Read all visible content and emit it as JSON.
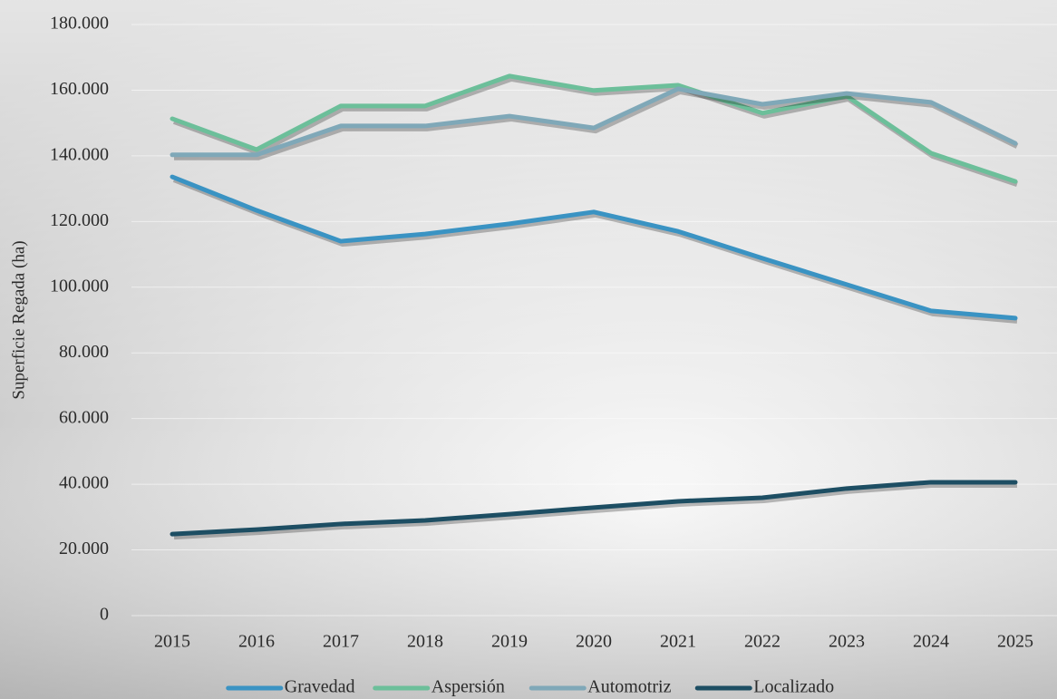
{
  "chart_data": {
    "type": "line",
    "y_label": "Superficie Regada (ha)",
    "categories": [
      "2015",
      "2016",
      "2017",
      "2018",
      "2019",
      "2020",
      "2021",
      "2022",
      "2023",
      "2024",
      "2025"
    ],
    "series": [
      {
        "name": "Gravedad",
        "color": "#3a93c3",
        "values": [
          133600,
          123400,
          114000,
          116200,
          119300,
          122900,
          117000,
          108800,
          100800,
          92800,
          90600
        ]
      },
      {
        "name": "Aspersión",
        "color": "#6cbf9a",
        "values": [
          151300,
          141900,
          155200,
          155200,
          164300,
          159900,
          161500,
          153000,
          158200,
          140800,
          132200
        ]
      },
      {
        "name": "Automotriz",
        "color": "#7fa8b8",
        "values": [
          140300,
          140300,
          149100,
          149100,
          152100,
          148500,
          160400,
          155700,
          159000,
          156300,
          143800
        ]
      },
      {
        "name": "Localizado",
        "color": "#1d4e63",
        "values": [
          24800,
          26200,
          27900,
          29000,
          30900,
          32900,
          34800,
          35900,
          38700,
          40600,
          40600
        ]
      }
    ],
    "ylim": [
      0,
      180000
    ],
    "yticks": [
      0,
      {
        "value": 20000,
        "label": "20.000"
      },
      {
        "value": 40000,
        "label": "40.000"
      },
      {
        "value": 60000,
        "label": "60.000"
      },
      {
        "value": 80000,
        "label": "80.000"
      },
      {
        "value": 100000,
        "label": "100.000"
      },
      {
        "value": 120000,
        "label": "120.000"
      },
      {
        "value": 140000,
        "label": "140.000"
      },
      {
        "value": 160000,
        "label": "160.000"
      },
      {
        "value": 180000,
        "label": "180.000"
      }
    ],
    "grid": true,
    "legend": "bottom"
  }
}
